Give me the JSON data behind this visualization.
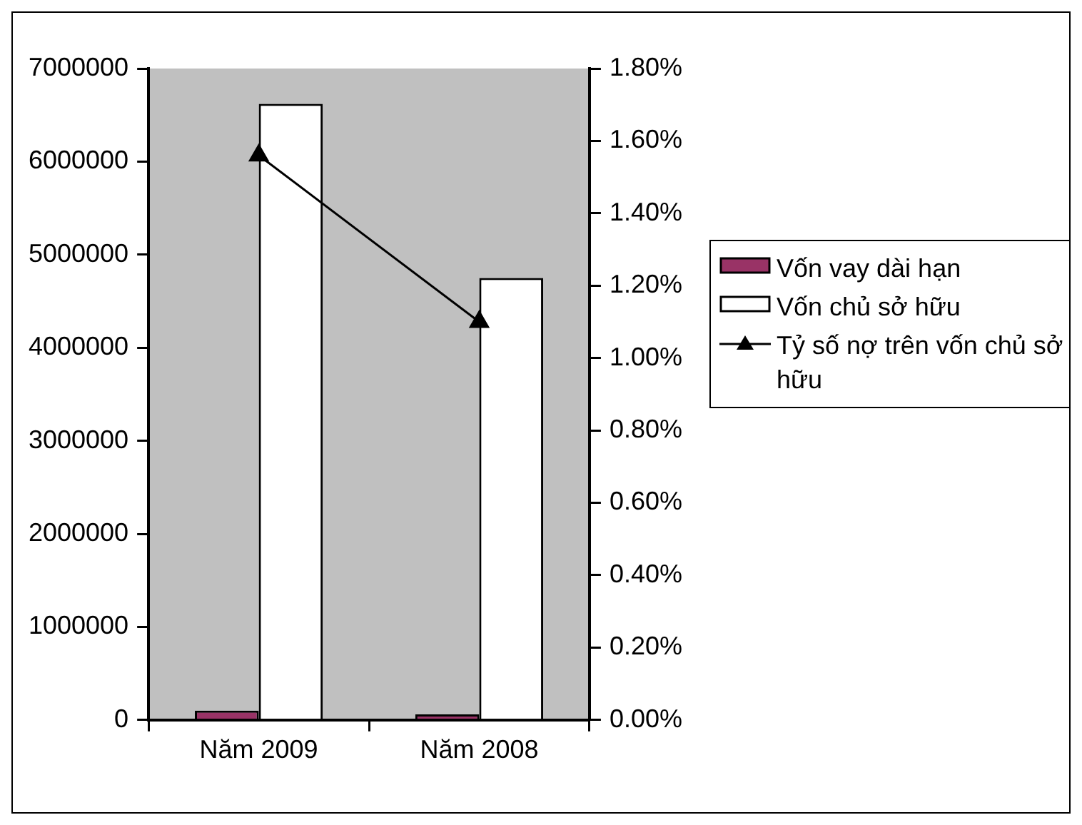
{
  "chart_data": {
    "type": "bar",
    "categories": [
      "Năm 2009",
      "Năm 2008"
    ],
    "series": [
      {
        "name": "Vốn vay dài hạn",
        "color": "#993366",
        "values": [
          100000,
          60000
        ]
      },
      {
        "name": "Vốn chủ sở hữu",
        "color": "#ffffff",
        "values": [
          6620000,
          4750000
        ]
      },
      {
        "name": "Tỷ số nợ trên vốn chủ sở hữu",
        "color": "#000000",
        "type": "line",
        "axis": "y2",
        "values": [
          1.56,
          1.1
        ]
      }
    ],
    "ylim": [
      0,
      7000000
    ],
    "yticks": [
      0,
      1000000,
      2000000,
      3000000,
      4000000,
      5000000,
      6000000,
      7000000
    ],
    "y2lim": [
      0,
      1.8
    ],
    "y2ticks": [
      {
        "value": 0,
        "label": "0.00%"
      },
      {
        "value": 0.2,
        "label": "0.20%"
      },
      {
        "value": 0.4,
        "label": "0.40%"
      },
      {
        "value": 0.6,
        "label": "0.60%"
      },
      {
        "value": 0.8,
        "label": "0.80%"
      },
      {
        "value": 1,
        "label": "1.00%"
      },
      {
        "value": 1.2,
        "label": "1.20%"
      },
      {
        "value": 1.4,
        "label": "1.40%"
      },
      {
        "value": 1.6,
        "label": "1.60%"
      },
      {
        "value": 1.8,
        "label": "1.80%"
      }
    ],
    "marker": "triangle",
    "legend": "right"
  }
}
